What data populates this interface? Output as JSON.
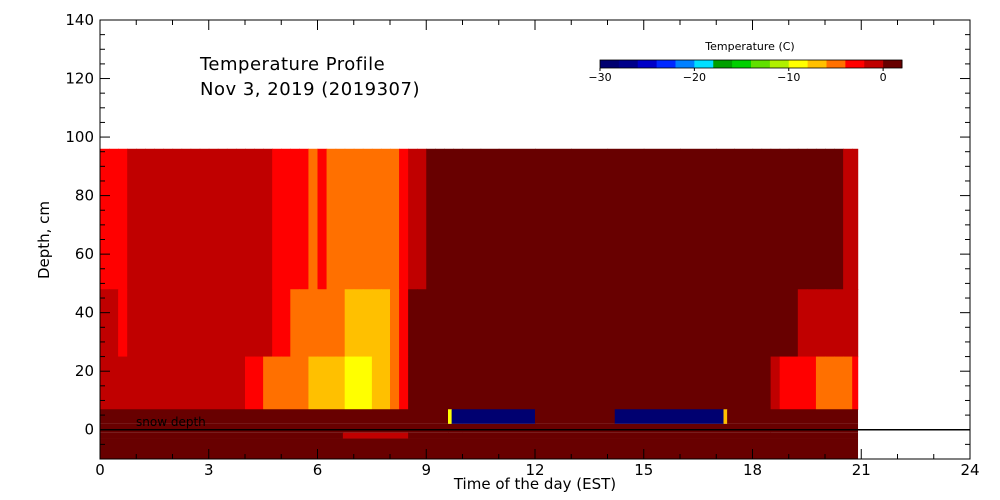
{
  "chart_data": {
    "type": "heatmap",
    "title": "Temperature Profile",
    "subtitle": "Nov  3, 2019 (2019307)",
    "xlabel": "Time of the day (EST)",
    "ylabel": "Depth, cm",
    "xlim": [
      0,
      24
    ],
    "ylim": [
      -10,
      140
    ],
    "x_ticks": [
      0,
      3,
      6,
      9,
      12,
      15,
      18,
      21,
      24
    ],
    "y_ticks": [
      0,
      20,
      40,
      60,
      80,
      100,
      120,
      140
    ],
    "colorbar": {
      "label": "Temperature (C)",
      "tick_values": [
        -30,
        -20,
        -10,
        0
      ],
      "tick_labels": [
        "−30",
        "−20",
        "−10",
        "0"
      ],
      "range": [
        -30,
        2
      ],
      "colors": [
        "#000070",
        "#00008a",
        "#0000c8",
        "#0028ff",
        "#0080ff",
        "#00e0ff",
        "#00a000",
        "#00d000",
        "#60e000",
        "#b0f000",
        "#ffff00",
        "#ffc000",
        "#ff7000",
        "#ff0000",
        "#c00000",
        "#680000"
      ]
    },
    "annotation": "snow depth",
    "zero_line_depth": 0,
    "soil_segments": [
      {
        "x0": 0,
        "x1": 9.6,
        "temp": 1.5
      },
      {
        "x0": 9.6,
        "x1": 9.7,
        "temp": -10
      },
      {
        "x0": 9.7,
        "x1": 12.0,
        "temp": -30
      },
      {
        "x0": 12.0,
        "x1": 14.2,
        "temp": 0
      },
      {
        "x0": 14.2,
        "x1": 17.2,
        "temp": -30
      },
      {
        "x0": 17.2,
        "x1": 17.3,
        "temp": -8
      },
      {
        "x0": 17.3,
        "x1": 20.9,
        "temp": 1.5
      }
    ],
    "deep_rows": [
      {
        "d0": 2,
        "d1": -1,
        "segments": [
          {
            "x0": 0,
            "x1": 10.0,
            "temp": 0
          },
          {
            "x0": 10.0,
            "x1": 18.5,
            "temp": 1.5
          },
          {
            "x0": 18.5,
            "x1": 20.9,
            "temp": 0.5
          }
        ]
      },
      {
        "d0": -1,
        "d1": -3,
        "segments": [
          {
            "x0": 0,
            "x1": 6.7,
            "temp": 0
          },
          {
            "x0": 6.7,
            "x1": 8.5,
            "temp": -1
          },
          {
            "x0": 8.5,
            "x1": 9.6,
            "temp": 0
          },
          {
            "x0": 9.6,
            "x1": 18.5,
            "temp": 1.5
          },
          {
            "x0": 18.5,
            "x1": 20.9,
            "temp": 0.5
          }
        ]
      },
      {
        "d0": -3,
        "d1": -10,
        "segments": [
          {
            "x0": 0,
            "x1": 20.9,
            "temp": 1.5
          }
        ]
      }
    ],
    "air_profile": {
      "times": [
        0,
        0.25,
        0.5,
        0.75,
        1,
        1.25,
        1.5,
        1.75,
        2,
        2.25,
        2.5,
        2.75,
        3,
        3.25,
        3.5,
        3.75,
        4,
        4.25,
        4.5,
        4.75,
        5,
        5.25,
        5.5,
        5.75,
        6,
        6.25,
        6.5,
        6.75,
        7,
        7.25,
        7.5,
        7.75,
        8,
        8.25,
        8.5,
        8.75,
        9,
        9.25,
        9.5,
        9.75,
        10,
        10.5,
        11,
        12,
        13,
        14,
        15,
        16,
        17,
        17.5,
        18,
        18.25,
        18.5,
        18.75,
        19,
        19.25,
        19.5,
        19.75,
        20,
        20.25,
        20.5,
        20.75
      ],
      "upper_temps": [
        -4,
        -3.5,
        -4,
        -2,
        -2,
        -2,
        -2,
        -2,
        -2,
        -2,
        -2,
        -2,
        -2,
        -2,
        -2,
        -2,
        -1,
        -1,
        -1,
        -3,
        -3,
        -3,
        -4,
        -5,
        -4,
        -5,
        -5,
        -5,
        -5,
        -5,
        -5,
        -6,
        -5,
        -4,
        -1,
        -0.5,
        0,
        0,
        0.5,
        1,
        1.5,
        1.5,
        1.5,
        1.5,
        1.5,
        1.5,
        1.5,
        1.5,
        1.5,
        1.5,
        1.5,
        1,
        0.5,
        0,
        0,
        0,
        0,
        0,
        0,
        0,
        -0.5,
        -0.5
      ],
      "mid_temps": [
        -2,
        -2,
        -3,
        -2,
        -2,
        -2,
        -1,
        -1,
        -1,
        -1,
        -2,
        -2,
        -1,
        -1,
        -1,
        -0.5,
        -0.5,
        -0.5,
        -1,
        -3,
        -4,
        -5,
        -5,
        -6,
        -6,
        -6,
        -6,
        -7,
        -7,
        -7,
        -7,
        -7,
        -6,
        -4,
        0,
        0.5,
        1,
        1.5,
        1.5,
        1.5,
        1.5,
        1.5,
        1.5,
        1.5,
        1.5,
        1.5,
        1.5,
        1.5,
        1.5,
        1.5,
        1.5,
        1.5,
        0.5,
        0,
        0,
        -1,
        -1,
        -1,
        -1,
        -1,
        -1,
        -2
      ],
      "low_temps": [
        -2,
        -2,
        -2,
        -2,
        -2,
        -2,
        -2,
        -2,
        -2,
        -2,
        -1,
        -1,
        -0.5,
        -1,
        -1,
        -2,
        -3,
        -4,
        -5,
        -6,
        -6,
        -6,
        -6,
        -7,
        -7,
        -8,
        -8,
        -9,
        -9,
        -9,
        -8,
        -8,
        -6,
        -4,
        0,
        1,
        1.5,
        1.5,
        1.5,
        1.5,
        1.5,
        1.5,
        1.5,
        1.5,
        1.5,
        1.5,
        1.5,
        1.5,
        1.5,
        1.5,
        1.5,
        0,
        -2,
        -3,
        -4,
        -4,
        -4,
        -5,
        -5,
        -5,
        -5,
        -4
      ]
    }
  }
}
